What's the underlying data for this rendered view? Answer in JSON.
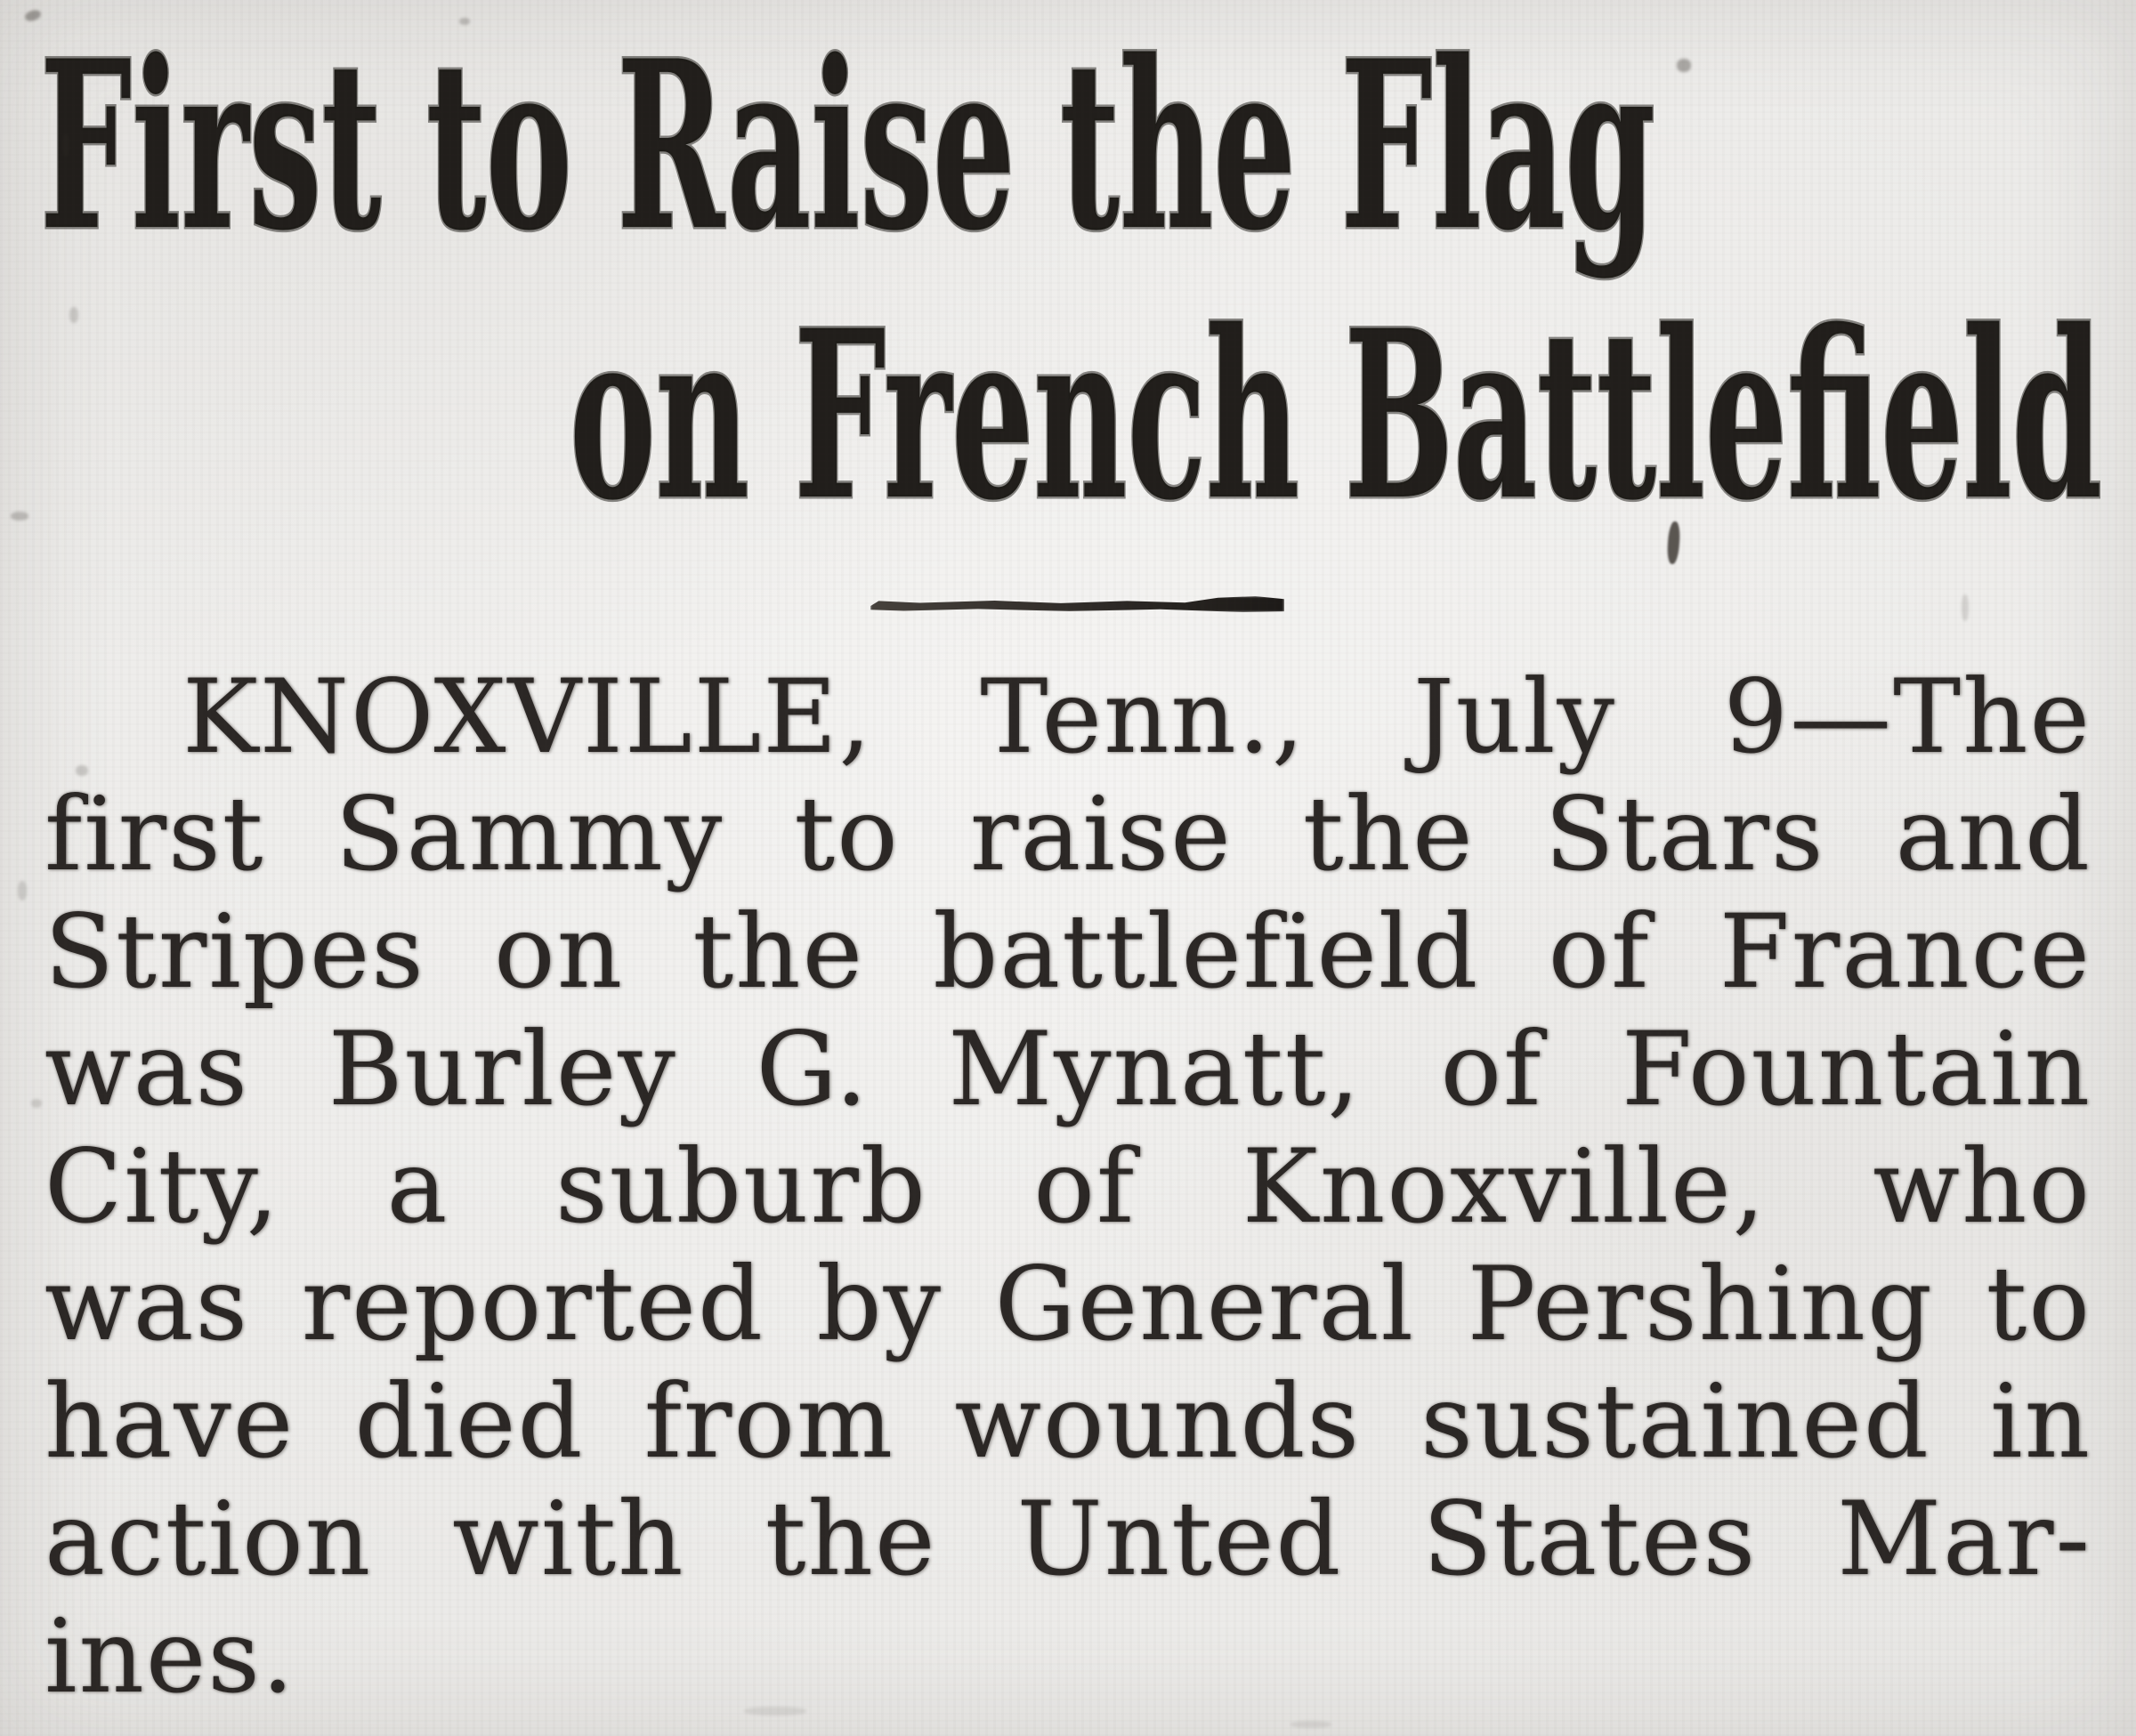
{
  "colors": {
    "paper": "#f1f0ee",
    "ink": "#2b2725",
    "headline_ink": "#211e1b"
  },
  "article": {
    "headline": {
      "line1": "First to Raise the Flag",
      "line2": "on French Battlefield"
    },
    "body": {
      "lines": [
        "KNOXVILLE, Tenn., July 9—The",
        "first Sammy to raise the Stars and",
        "Stripes on the battlefield of France",
        "was Burley G. Mynatt, of Fountain",
        "City, a suburb of Knoxville, who",
        "was reported by General Pershing to",
        "have died from wounds sustained in",
        "action with the Unted States Mar-",
        "ines."
      ]
    }
  }
}
